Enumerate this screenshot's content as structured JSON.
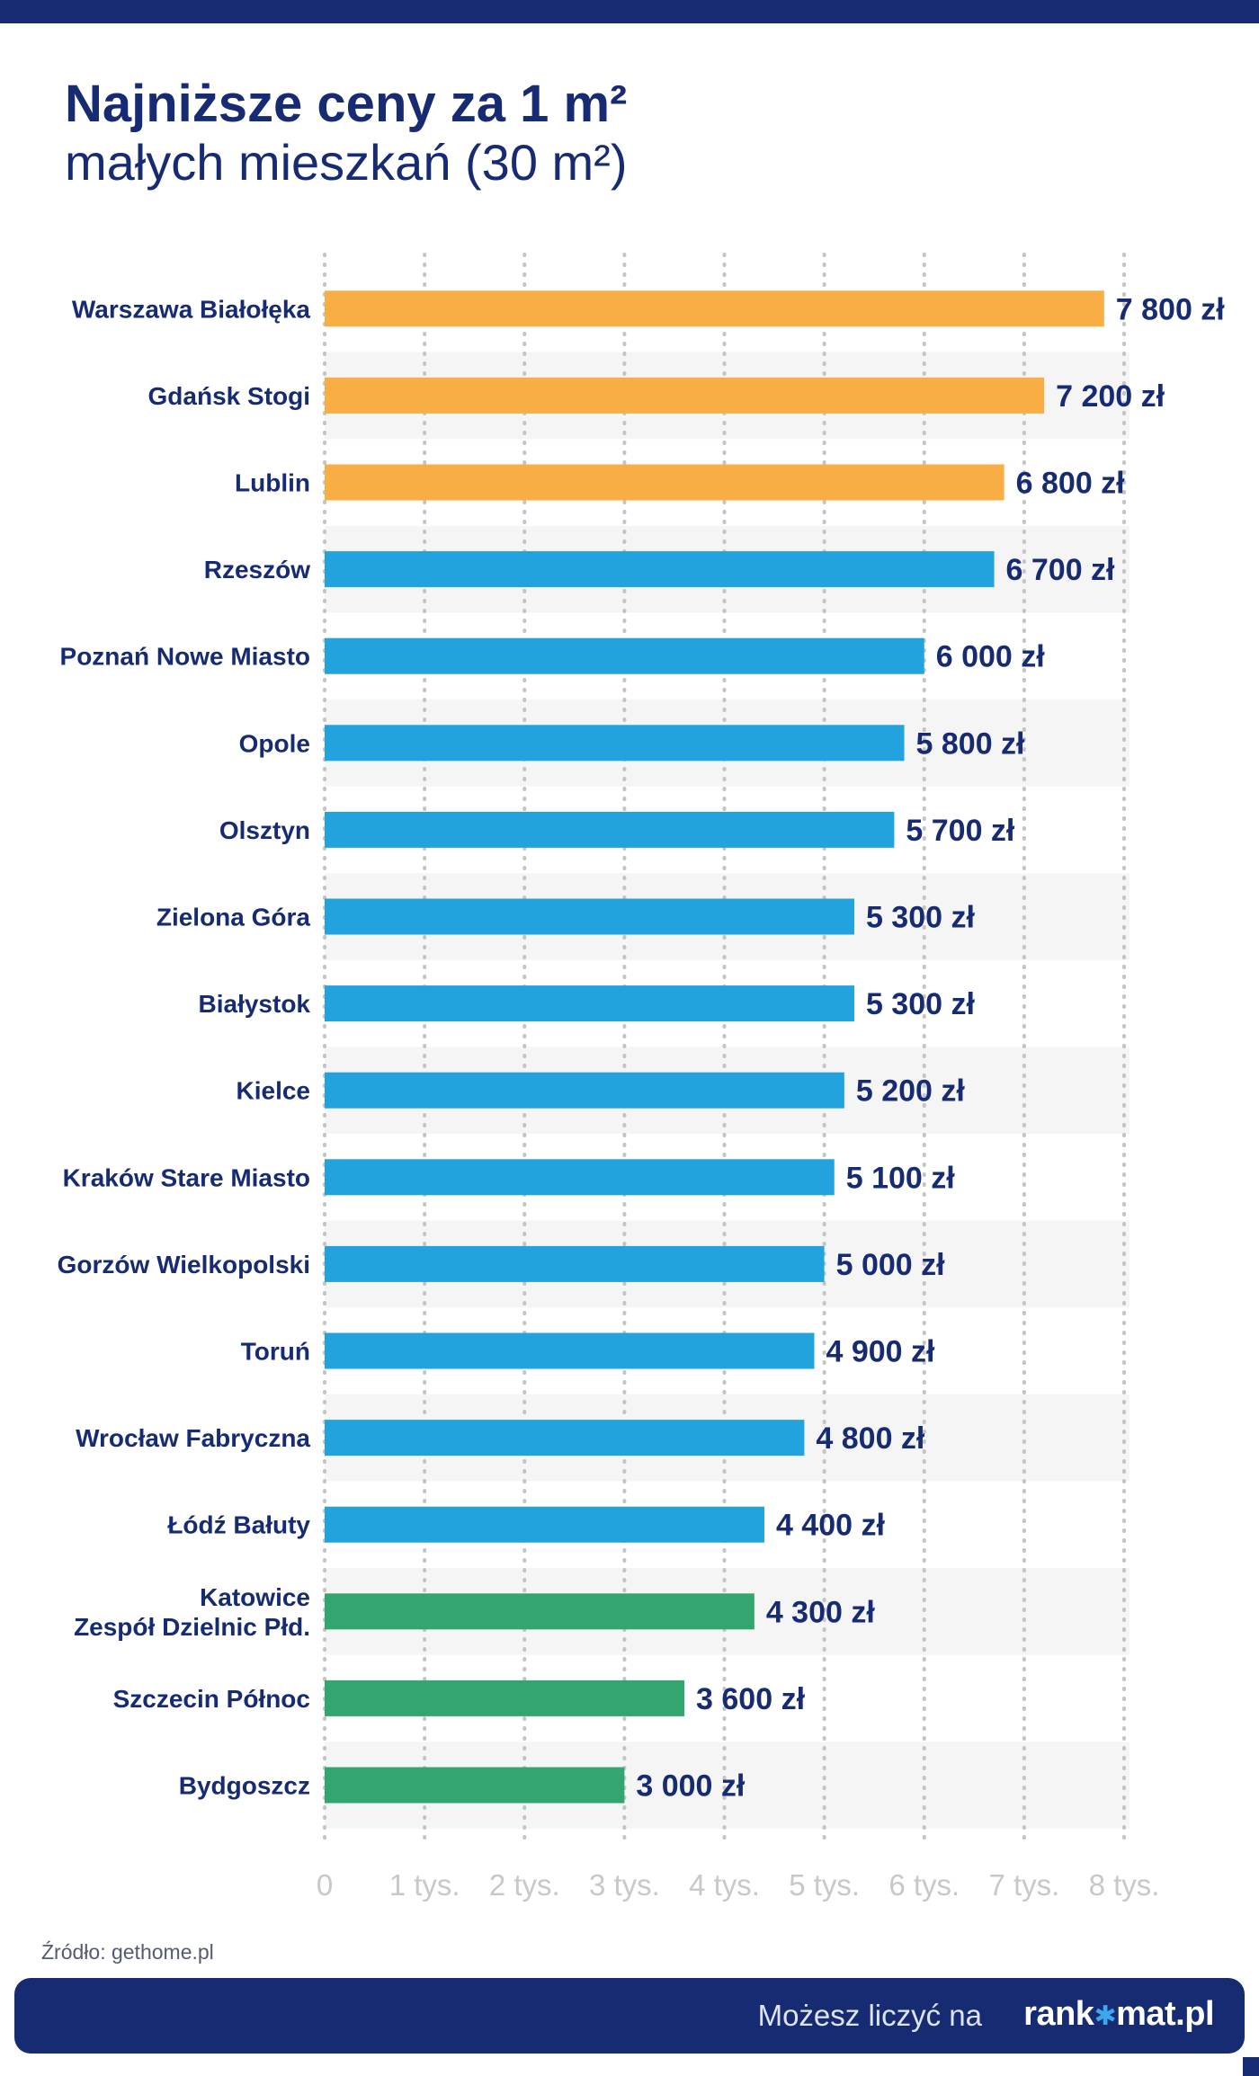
{
  "header": {
    "title_line1": "Najniższe ceny za 1 m²",
    "title_line2": "małych mieszkań (30 m²)"
  },
  "colors": {
    "orange": "#f9ad45",
    "blue": "#22a3de",
    "green": "#33a56f",
    "navy": "#172b73"
  },
  "chart_data": {
    "type": "bar",
    "orientation": "horizontal",
    "categories": [
      "Warszawa Białołęka",
      "Gdańsk Stogi",
      "Lublin",
      "Rzeszów",
      "Poznań Nowe Miasto",
      "Opole",
      "Olsztyn",
      "Zielona Góra",
      "Białystok",
      "Kielce",
      "Kraków Stare Miasto",
      "Gorzów Wielkopolski",
      "Toruń",
      "Wrocław Fabryczna",
      "Łódź Bałuty",
      "Katowice\nZespół Dzielnic Płd.",
      "Szczecin Północ",
      "Bydgoszcz"
    ],
    "values": [
      7800,
      7200,
      6800,
      6700,
      6000,
      5800,
      5700,
      5300,
      5300,
      5200,
      5100,
      5000,
      4900,
      4800,
      4400,
      4300,
      3600,
      3000
    ],
    "value_labels": [
      "7 800 zł",
      "7 200 zł",
      "6 800 zł",
      "6 700 zł",
      "6 000 zł",
      "5 800 zł",
      "5 700 zł",
      "5 300 zł",
      "5 300 zł",
      "5 200 zł",
      "5 100 zł",
      "5 000 zł",
      "4 900 zł",
      "4 800 zł",
      "4 400 zł",
      "4 300 zł",
      "3 600 zł",
      "3 000 zł"
    ],
    "bar_colors": [
      "orange",
      "orange",
      "orange",
      "blue",
      "blue",
      "blue",
      "blue",
      "blue",
      "blue",
      "blue",
      "blue",
      "blue",
      "blue",
      "blue",
      "blue",
      "green",
      "green",
      "green"
    ],
    "xlim": [
      0,
      8000
    ],
    "x_ticks": [
      0,
      1000,
      2000,
      3000,
      4000,
      5000,
      6000,
      7000,
      8000
    ],
    "x_tick_labels": [
      "0",
      "1 tys.",
      "2 tys.",
      "3 tys.",
      "4 tys.",
      "5 tys.",
      "6 tys.",
      "7 tys.",
      "8 tys."
    ],
    "grid": "vertical-dotted"
  },
  "source": "Źródło: gethome.pl",
  "footer": {
    "tagline": "Możesz liczyć na",
    "logo_left": "rank",
    "logo_right": "mat.pl"
  }
}
